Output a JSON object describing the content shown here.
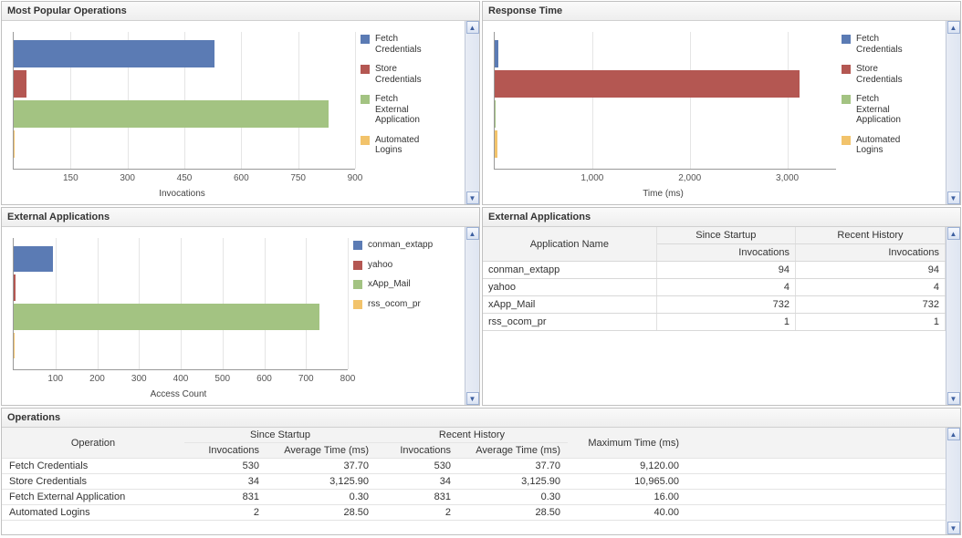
{
  "colors": {
    "fetch_credentials": "#5b7bb4",
    "store_credentials": "#b45752",
    "fetch_external_app": "#a3c382",
    "automated_logins": "#f2c36b",
    "grid": "#e5e5e5",
    "axis": "#999999"
  },
  "top_left": {
    "title": "Most Popular Operations",
    "xlabel": "Invocations",
    "xmax": 900,
    "ticks": [
      150,
      300,
      450,
      600,
      750,
      900
    ],
    "series": [
      {
        "key": "fetch_credentials",
        "label": "Fetch\nCredentials",
        "value": 530
      },
      {
        "key": "store_credentials",
        "label": "Store\nCredentials",
        "value": 34
      },
      {
        "key": "fetch_external_app",
        "label": "Fetch\nExternal\nApplication",
        "value": 831
      },
      {
        "key": "automated_logins",
        "label": "Automated\nLogins",
        "value": 2
      }
    ]
  },
  "top_right": {
    "title": "Response Time",
    "xlabel": "Time (ms)",
    "xmax": 3500,
    "ticks": [
      1000,
      2000,
      3000
    ],
    "tick_labels": [
      "1,000",
      "2,000",
      "3,000"
    ],
    "series": [
      {
        "key": "fetch_credentials",
        "label": "Fetch\nCredentials",
        "value": 38
      },
      {
        "key": "store_credentials",
        "label": "Store\nCredentials",
        "value": 3126
      },
      {
        "key": "fetch_external_app",
        "label": "Fetch\nExternal\nApplication",
        "value": 1
      },
      {
        "key": "automated_logins",
        "label": "Automated\nLogins",
        "value": 29
      }
    ]
  },
  "mid_left": {
    "title": "External Applications",
    "xlabel": "Access Count",
    "xmax": 800,
    "ticks": [
      100,
      200,
      300,
      400,
      500,
      600,
      700,
      800
    ],
    "series": [
      {
        "key": "fetch_credentials",
        "label": "conman_extapp",
        "value": 94
      },
      {
        "key": "store_credentials",
        "label": "yahoo",
        "value": 4
      },
      {
        "key": "fetch_external_app",
        "label": "xApp_Mail",
        "value": 732
      },
      {
        "key": "automated_logins",
        "label": "rss_ocom_pr",
        "value": 1
      }
    ]
  },
  "mid_right": {
    "title": "External Applications",
    "headers": {
      "app": "Application Name",
      "startup": "Since Startup",
      "recent": "Recent History",
      "inv": "Invocations"
    },
    "rows": [
      {
        "name": "conman_extapp",
        "startup": "94",
        "recent": "94"
      },
      {
        "name": "yahoo",
        "startup": "4",
        "recent": "4"
      },
      {
        "name": "xApp_Mail",
        "startup": "732",
        "recent": "732"
      },
      {
        "name": "rss_ocom_pr",
        "startup": "1",
        "recent": "1"
      }
    ]
  },
  "operations": {
    "title": "Operations",
    "headers": {
      "op": "Operation",
      "startup": "Since Startup",
      "recent": "Recent History",
      "inv": "Invocations",
      "avg": "Average Time (ms)",
      "max": "Maximum Time (ms)"
    },
    "rows": [
      {
        "op": "Fetch Credentials",
        "s_inv": "530",
        "s_avg": "37.70",
        "r_inv": "530",
        "r_avg": "37.70",
        "max": "9,120.00"
      },
      {
        "op": "Store Credentials",
        "s_inv": "34",
        "s_avg": "3,125.90",
        "r_inv": "34",
        "r_avg": "3,125.90",
        "max": "10,965.00"
      },
      {
        "op": "Fetch External Application",
        "s_inv": "831",
        "s_avg": "0.30",
        "r_inv": "831",
        "r_avg": "0.30",
        "max": "16.00"
      },
      {
        "op": "Automated Logins",
        "s_inv": "2",
        "s_avg": "28.50",
        "r_inv": "2",
        "r_avg": "28.50",
        "max": "40.00"
      }
    ]
  }
}
